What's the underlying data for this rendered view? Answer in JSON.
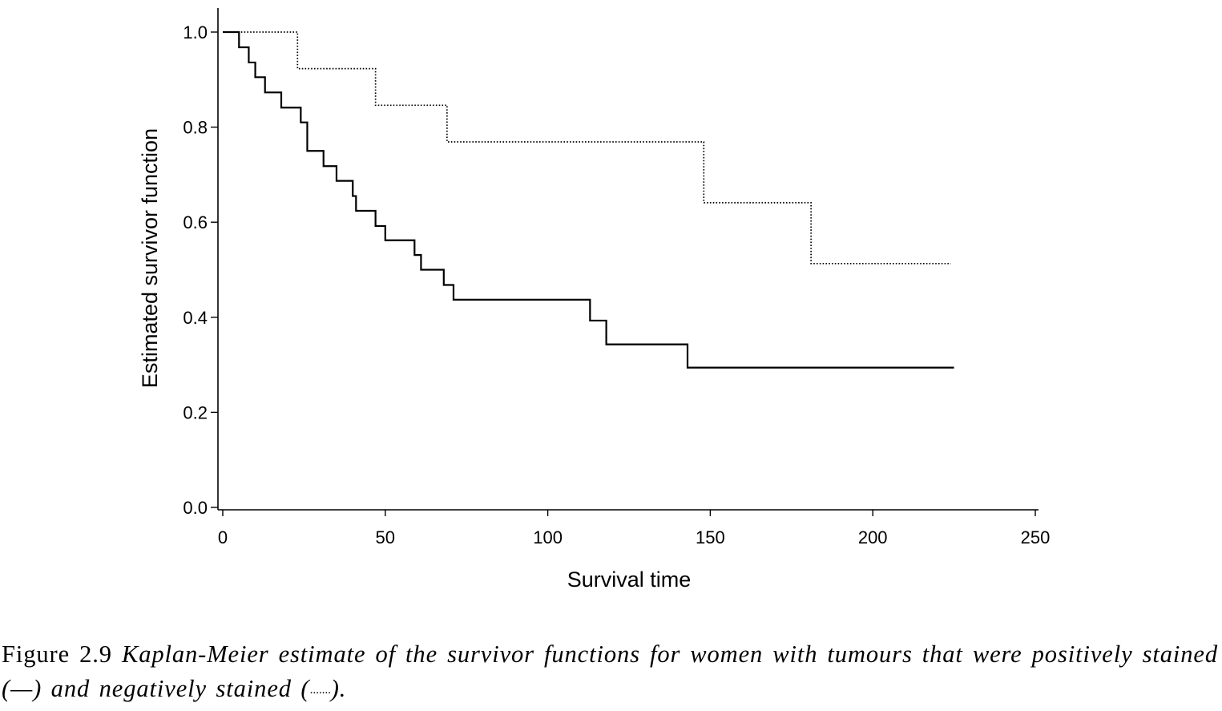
{
  "chart_data": {
    "type": "line",
    "step": true,
    "xlabel": "Survival time",
    "ylabel": "Estimated survivor function",
    "xlim": [
      0,
      250
    ],
    "ylim": [
      0,
      1.0
    ],
    "xticks": [
      0,
      50,
      100,
      150,
      200,
      250
    ],
    "yticks": [
      0.0,
      0.2,
      0.4,
      0.6,
      0.8,
      1.0
    ],
    "xtick_labels": [
      "0",
      "50",
      "100",
      "150",
      "200",
      "250"
    ],
    "ytick_labels": [
      "0.0",
      "0.2",
      "0.4",
      "0.6",
      "0.8",
      "1.0"
    ],
    "grid": false,
    "legend": false,
    "series": [
      {
        "style": "solid",
        "times": [
          0,
          5,
          8,
          10,
          13,
          18,
          24,
          26,
          31,
          35,
          40,
          41,
          47,
          50,
          59,
          61,
          68,
          71,
          113,
          118,
          143,
          225
        ],
        "survival": [
          1.0,
          0.968,
          0.936,
          0.905,
          0.873,
          0.841,
          0.81,
          0.75,
          0.718,
          0.687,
          0.655,
          0.624,
          0.592,
          0.562,
          0.531,
          0.5,
          0.468,
          0.437,
          0.393,
          0.343,
          0.294,
          0.294
        ]
      },
      {
        "style": "dotted",
        "times": [
          0,
          23,
          47,
          69,
          148,
          181,
          224
        ],
        "survival": [
          1.0,
          0.923,
          0.846,
          0.769,
          0.641,
          0.513,
          0.513
        ]
      }
    ]
  },
  "caption": {
    "label": "Figure 2.9",
    "text_1": "Kaplan-Meier estimate of the survivor functions for women with tumours that were positively stained (",
    "dash_positive": "—",
    "text_2": ") and negatively stained (",
    "dash_negative": "·······",
    "text_3": ")."
  }
}
